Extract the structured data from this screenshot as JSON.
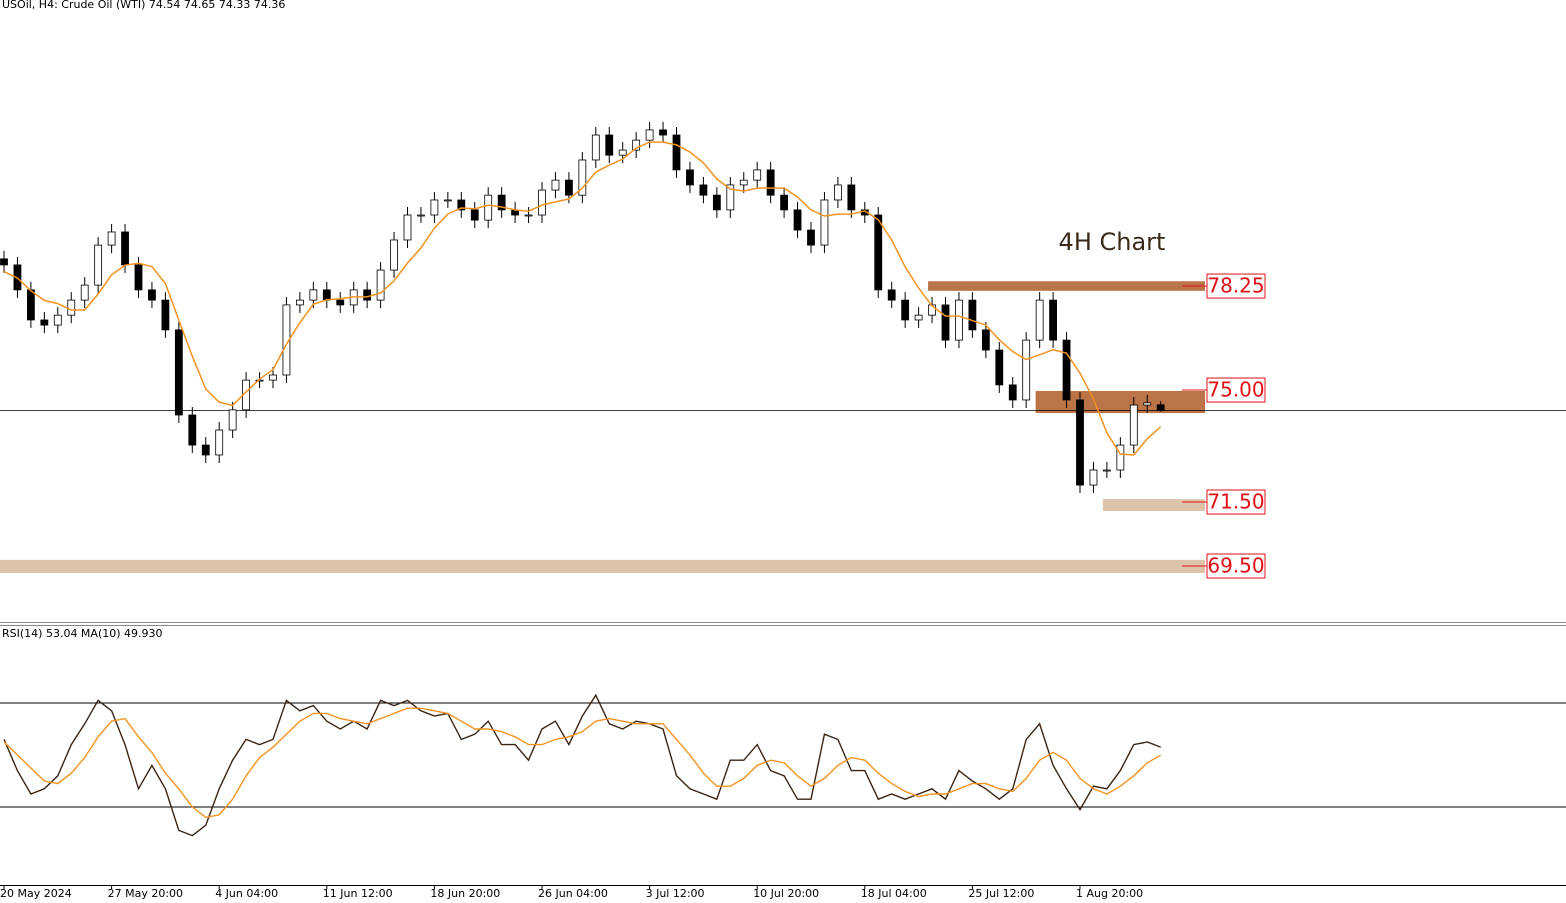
{
  "chart_data": [
    {
      "type": "candlestick",
      "title": "USOil, H4:  Crude Oil (WTI)  74.54 74.65 74.33 74.36",
      "annotation": "4H Chart",
      "categories": [
        "20 May 2024",
        null,
        null,
        null,
        null,
        null,
        null,
        null,
        "27 May 20:00",
        null,
        null,
        null,
        null,
        null,
        null,
        null,
        "4 Jun 04:00",
        null,
        null,
        null,
        null,
        null,
        null,
        null,
        "11 Jun 12:00",
        null,
        null,
        null,
        null,
        null,
        null,
        null,
        "18 Jun 20:00",
        null,
        null,
        null,
        null,
        null,
        null,
        null,
        "26 Jun 04:00",
        null,
        null,
        null,
        null,
        null,
        null,
        null,
        "3 Jul 12:00",
        null,
        null,
        null,
        null,
        null,
        null,
        null,
        "10 Jul 20:00",
        null,
        null,
        null,
        null,
        null,
        null,
        null,
        "18 Jul 04:00",
        null,
        null,
        null,
        null,
        null,
        null,
        null,
        "25 Jul 12:00",
        null,
        null,
        null,
        null,
        null,
        null,
        null,
        "1 Aug 20:00",
        null,
        null,
        null,
        null,
        null,
        null
      ],
      "open": [
        79.1,
        78.91,
        78.13,
        77.19,
        77.03,
        77.34,
        77.81,
        78.28,
        79.53,
        79.94,
        78.91,
        78.13,
        77.81,
        76.88,
        74.22,
        73.28,
        72.97,
        73.75,
        74.38,
        75.31,
        75.31,
        75.47,
        77.66,
        77.81,
        78.13,
        77.81,
        77.66,
        78.13,
        77.81,
        78.75,
        79.69,
        80.47,
        80.47,
        80.94,
        80.94,
        80.63,
        80.31,
        81.09,
        80.63,
        80.47,
        80.47,
        81.25,
        81.56,
        81.09,
        82.19,
        82.97,
        82.34,
        82.5,
        82.81,
        83.13,
        82.97,
        81.88,
        81.41,
        81.09,
        80.63,
        81.41,
        81.56,
        81.88,
        81.09,
        80.63,
        80.0,
        79.53,
        80.94,
        81.41,
        80.63,
        80.47,
        78.13,
        77.81,
        77.19,
        77.34,
        77.66,
        76.56,
        77.81,
        76.88,
        76.25,
        75.16,
        74.69,
        76.56,
        77.81,
        76.56,
        74.69,
        72.03,
        72.5,
        72.5,
        73.28,
        74.53,
        74.54
      ],
      "high": [
        79.35,
        79.16,
        78.38,
        77.44,
        77.59,
        78.06,
        78.53,
        79.78,
        80.19,
        80.19,
        79.16,
        78.38,
        78.06,
        77.13,
        74.47,
        73.53,
        74.0,
        74.63,
        75.56,
        75.56,
        75.72,
        77.91,
        78.06,
        78.38,
        78.38,
        78.06,
        78.38,
        78.38,
        79.0,
        79.94,
        80.72,
        80.72,
        81.19,
        81.19,
        81.19,
        80.88,
        81.34,
        81.34,
        80.88,
        80.72,
        81.5,
        81.81,
        81.81,
        82.44,
        83.22,
        83.22,
        82.75,
        83.06,
        83.38,
        83.38,
        83.22,
        82.13,
        81.66,
        81.34,
        81.66,
        81.81,
        82.13,
        82.13,
        81.34,
        80.88,
        80.25,
        81.19,
        81.66,
        81.66,
        80.88,
        80.72,
        78.38,
        78.06,
        77.59,
        77.91,
        77.91,
        78.06,
        78.06,
        77.13,
        76.5,
        75.41,
        76.81,
        78.06,
        78.06,
        76.81,
        74.94,
        72.75,
        72.75,
        73.53,
        74.78,
        74.85,
        74.65
      ],
      "low": [
        78.66,
        77.88,
        76.94,
        76.78,
        76.78,
        77.09,
        77.56,
        78.03,
        79.28,
        78.66,
        77.88,
        77.56,
        76.63,
        73.97,
        73.03,
        72.72,
        72.72,
        73.5,
        74.13,
        75.06,
        75.06,
        75.22,
        77.41,
        77.56,
        77.56,
        77.41,
        77.41,
        77.56,
        77.56,
        78.5,
        79.44,
        80.22,
        80.22,
        80.69,
        80.38,
        80.06,
        80.06,
        80.38,
        80.22,
        80.22,
        80.22,
        81.0,
        80.84,
        80.84,
        81.94,
        82.09,
        82.09,
        82.25,
        82.56,
        82.72,
        81.63,
        81.16,
        80.84,
        80.38,
        80.38,
        81.16,
        81.31,
        80.84,
        80.38,
        79.75,
        79.28,
        79.28,
        80.69,
        80.38,
        80.22,
        77.88,
        77.56,
        76.94,
        76.94,
        77.09,
        76.31,
        76.31,
        76.63,
        76.0,
        74.91,
        74.44,
        74.44,
        76.31,
        76.31,
        74.44,
        71.78,
        71.78,
        72.25,
        72.25,
        73.03,
        74.28,
        74.33
      ],
      "close": [
        78.91,
        78.13,
        77.19,
        77.03,
        77.34,
        77.81,
        78.28,
        79.53,
        79.94,
        78.91,
        78.13,
        77.81,
        76.88,
        74.22,
        73.28,
        72.97,
        73.75,
        74.38,
        75.31,
        75.31,
        75.47,
        77.66,
        77.81,
        78.13,
        77.81,
        77.66,
        78.13,
        77.81,
        78.75,
        79.69,
        80.47,
        80.47,
        80.94,
        80.94,
        80.63,
        80.31,
        81.09,
        80.63,
        80.47,
        80.47,
        81.25,
        81.56,
        81.09,
        82.19,
        82.97,
        82.34,
        82.5,
        82.81,
        83.13,
        82.97,
        81.88,
        81.41,
        81.09,
        80.63,
        81.41,
        81.56,
        81.88,
        81.09,
        80.63,
        80.0,
        79.53,
        80.94,
        81.41,
        80.63,
        80.47,
        78.13,
        77.81,
        77.19,
        77.34,
        77.66,
        76.56,
        77.81,
        76.88,
        76.25,
        75.16,
        74.69,
        76.56,
        77.81,
        76.56,
        74.69,
        72.03,
        72.5,
        72.5,
        73.28,
        74.53,
        74.6,
        74.36
      ],
      "up_color": "#ffffff",
      "down_color": "#000000",
      "candle_color": "#000000",
      "ma": {
        "color": "#f29320",
        "values": [
          78.7,
          78.5,
          78.1,
          77.8,
          77.7,
          77.5,
          77.5,
          78.0,
          78.6,
          78.9,
          78.96,
          78.86,
          78.33,
          77.19,
          76.06,
          75.03,
          74.62,
          74.52,
          74.94,
          75.34,
          75.64,
          76.43,
          77.11,
          77.68,
          77.82,
          77.85,
          77.91,
          77.91,
          78.03,
          78.41,
          78.97,
          79.44,
          80.06,
          80.5,
          80.69,
          80.66,
          80.78,
          80.72,
          80.63,
          80.59,
          80.78,
          80.88,
          80.97,
          81.31,
          81.81,
          82.03,
          82.22,
          82.56,
          82.75,
          82.75,
          82.66,
          82.44,
          82.1,
          81.6,
          81.28,
          81.22,
          81.31,
          81.31,
          81.31,
          81.03,
          80.63,
          80.44,
          80.5,
          80.5,
          80.6,
          80.32,
          79.69,
          78.85,
          78.19,
          77.63,
          77.31,
          77.31,
          77.17,
          77.03,
          76.57,
          76.2,
          75.95,
          76.1,
          76.26,
          76.15,
          75.53,
          74.72,
          73.66,
          73.0,
          72.97,
          73.48,
          73.85
        ]
      },
      "ylim": [
        67.75,
        87.19
      ],
      "zones": [
        {
          "level": 78.25,
          "bottom": 78.1,
          "top": 78.4,
          "start": 69,
          "color": "#bb7448"
        },
        {
          "level": {
            "value": 75,
            "label": "75.00"
          },
          "bottom": 74.28,
          "top": 74.97,
          "start": 77,
          "color": "#bb7448"
        },
        {
          "level": {
            "value": 71.5,
            "label": "71.50"
          },
          "bottom": 71.22,
          "top": 71.59,
          "start": 82,
          "color": "#dcc4aa"
        },
        {
          "level": {
            "value": 69.5,
            "label": "69.50"
          },
          "bottom": 69.28,
          "top": 69.69,
          "start": 0,
          "color": "#dcc4aa"
        }
      ],
      "level_label_color": "#e0101a"
    },
    {
      "type": "line",
      "title": "RSI(14) 53.04 MA(10) 49.930",
      "ylim": [
        0,
        100
      ],
      "levels": [
        30,
        70
      ],
      "series": [
        {
          "color": "#3a2414",
          "values": [
            56,
            44,
            35,
            37,
            42,
            54,
            62,
            71,
            67,
            54,
            37,
            46,
            37,
            21,
            19,
            23,
            37,
            48,
            56,
            54,
            56,
            71,
            67,
            69,
            63,
            60,
            63,
            60,
            71,
            69,
            71,
            67,
            65,
            66,
            56,
            58,
            63,
            54,
            54,
            48,
            60,
            63,
            54,
            65,
            73,
            62,
            60,
            63,
            62,
            60,
            42,
            37,
            35,
            33,
            48,
            48,
            54,
            44,
            42,
            33,
            33,
            58,
            56,
            44,
            44,
            33,
            35,
            33,
            35,
            37,
            33,
            44,
            40,
            37,
            33,
            37,
            56,
            62,
            46,
            37,
            29,
            38,
            37,
            44,
            54,
            55,
            53.04
          ]
        },
        {
          "color": "#f29320",
          "values": [
            55,
            50,
            45,
            40,
            39,
            43,
            49,
            57,
            63,
            64,
            57,
            51,
            43,
            37,
            30,
            26,
            27,
            33,
            42,
            49,
            53,
            58,
            63,
            66,
            66,
            64,
            63,
            62,
            64,
            66,
            68,
            68,
            67,
            66,
            63,
            60,
            60,
            59,
            57,
            54,
            54,
            56,
            57,
            59,
            63,
            64,
            63,
            62,
            62,
            62,
            56,
            50,
            43,
            38,
            38,
            41,
            46,
            48,
            47,
            42,
            38,
            41,
            46,
            49,
            48,
            43,
            39,
            36,
            34,
            35,
            35,
            37,
            39,
            39,
            37,
            36,
            41,
            48,
            51,
            48,
            41,
            37,
            35,
            38,
            42,
            47,
            49.93
          ]
        }
      ]
    }
  ]
}
